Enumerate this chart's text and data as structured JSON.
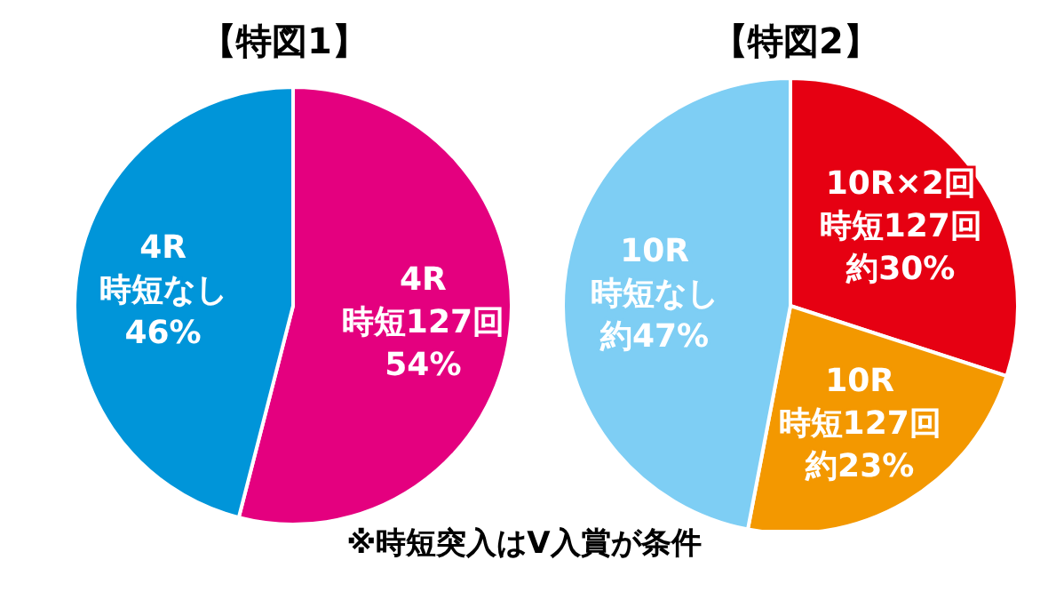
{
  "chart_data": [
    {
      "type": "pie",
      "title": "【特図1】",
      "categories": [
        "4R時短127回",
        "4R時短なし"
      ],
      "values": [
        54,
        46
      ],
      "colors": [
        "#e4007f",
        "#0095d9"
      ],
      "value_labels": [
        "54%",
        "46%"
      ]
    },
    {
      "type": "pie",
      "title": "【特図2】",
      "categories": [
        "10R×2回時短127回",
        "10R時短127回",
        "10R時短なし"
      ],
      "values": [
        30,
        23,
        47
      ],
      "colors": [
        "#e60012",
        "#f39800",
        "#7ecef4"
      ],
      "value_labels": [
        "約30%",
        "約23%",
        "約47%"
      ],
      "annotations": [
        "※時短突入はV入賞が条件"
      ]
    }
  ]
}
